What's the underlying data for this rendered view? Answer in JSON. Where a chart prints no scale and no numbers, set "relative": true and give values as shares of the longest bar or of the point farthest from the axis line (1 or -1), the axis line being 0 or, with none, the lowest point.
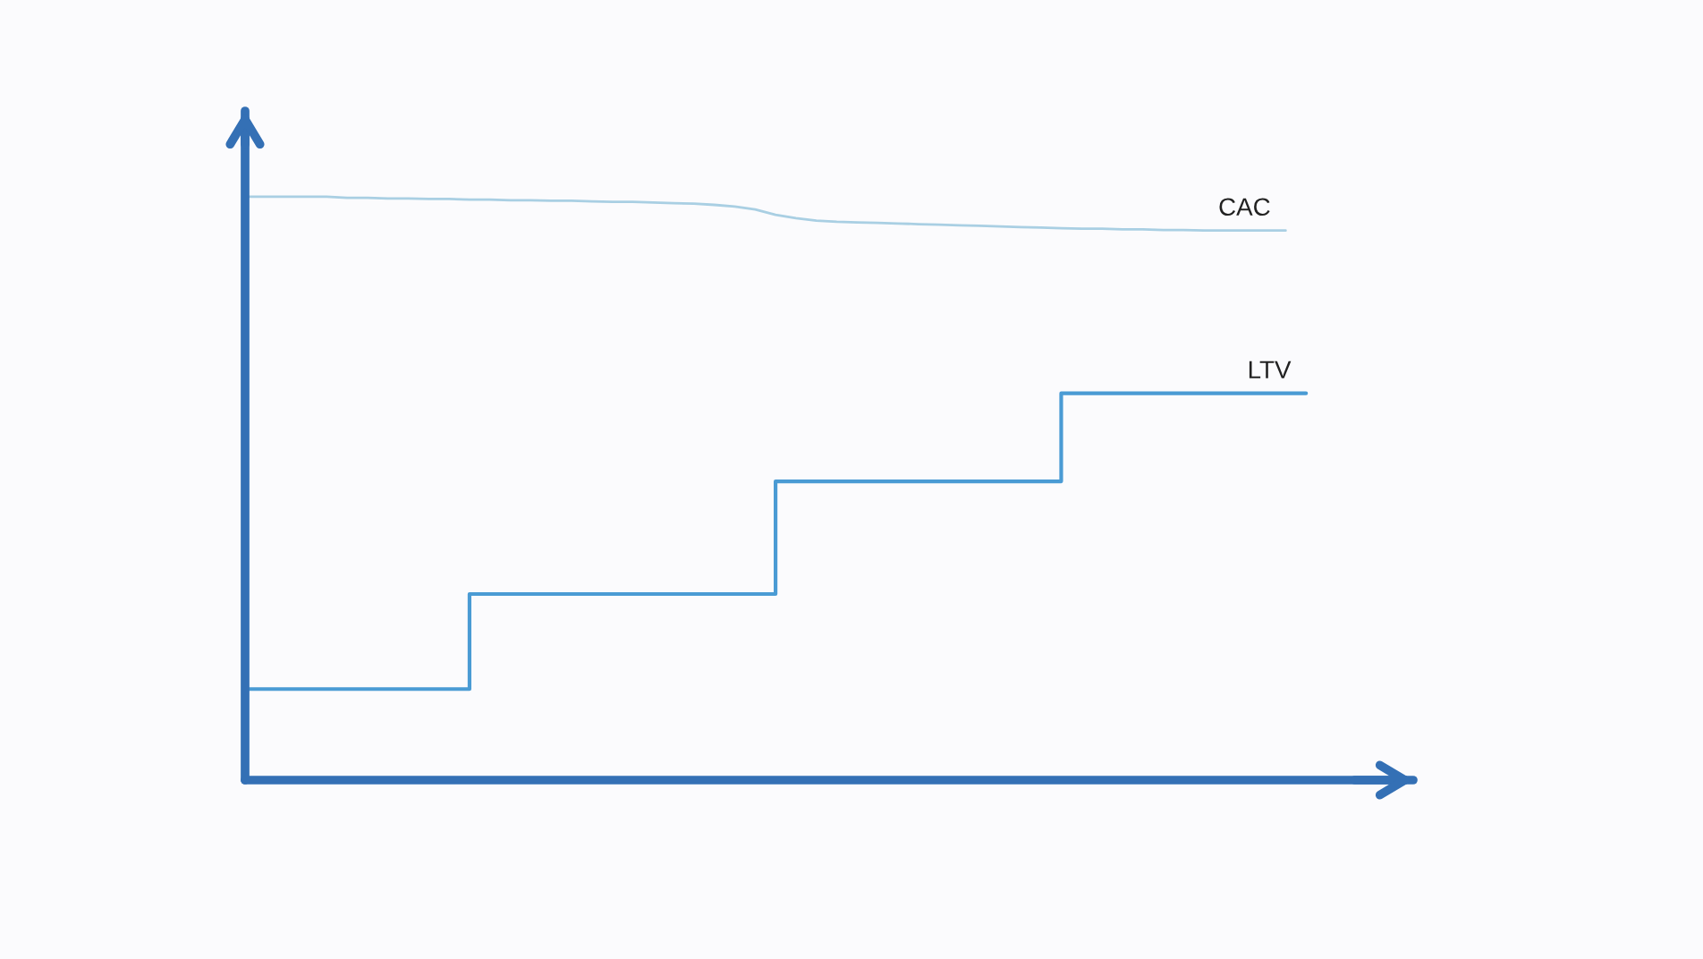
{
  "chart_data": {
    "type": "line",
    "relative": true,
    "categories": [
      null,
      null,
      null,
      null,
      null,
      null,
      null,
      null,
      null,
      null,
      null,
      null,
      null,
      null,
      null,
      null,
      null,
      null,
      null,
      null,
      null,
      null,
      null,
      null,
      null,
      null,
      null,
      null,
      null,
      null,
      null,
      null,
      null,
      null,
      null,
      null,
      null,
      null,
      null,
      null,
      null,
      null,
      null,
      null,
      null,
      null,
      null,
      null,
      null,
      null,
      null,
      null,
      null
    ],
    "series": [
      {
        "name": "CAC",
        "color": "#a9cfe3",
        "values": [
          1.0,
          1.0,
          1.0,
          1.0,
          1.0,
          0.998,
          0.998,
          0.997,
          0.997,
          0.996,
          0.996,
          0.995,
          0.995,
          0.994,
          0.994,
          0.993,
          0.993,
          0.992,
          0.991,
          0.991,
          0.99,
          0.989,
          0.988,
          0.986,
          0.983,
          0.978,
          0.969,
          0.963,
          0.959,
          0.957,
          0.956,
          0.955,
          0.954,
          0.953,
          0.952,
          0.951,
          0.95,
          0.949,
          0.948,
          0.947,
          0.946,
          0.945,
          0.945,
          0.944,
          0.944,
          0.943,
          0.943,
          0.942,
          0.942,
          0.942,
          0.942,
          0.942,
          null
        ]
      },
      {
        "name": "LTV",
        "type": "step",
        "color": "#4a9bd4",
        "values": [
          0.156,
          0.156,
          0.156,
          0.156,
          0.156,
          0.156,
          0.156,
          0.156,
          0.156,
          0.156,
          0.156,
          0.319,
          0.319,
          0.319,
          0.319,
          0.319,
          0.319,
          0.319,
          0.319,
          0.319,
          0.319,
          0.319,
          0.319,
          0.319,
          0.319,
          0.319,
          0.512,
          0.512,
          0.512,
          0.512,
          0.512,
          0.512,
          0.512,
          0.512,
          0.512,
          0.512,
          0.512,
          0.512,
          0.512,
          0.512,
          0.663,
          0.663,
          0.663,
          0.663,
          0.663,
          0.663,
          0.663,
          0.663,
          0.663,
          0.663,
          0.663,
          0.663,
          0.663
        ]
      }
    ]
  }
}
